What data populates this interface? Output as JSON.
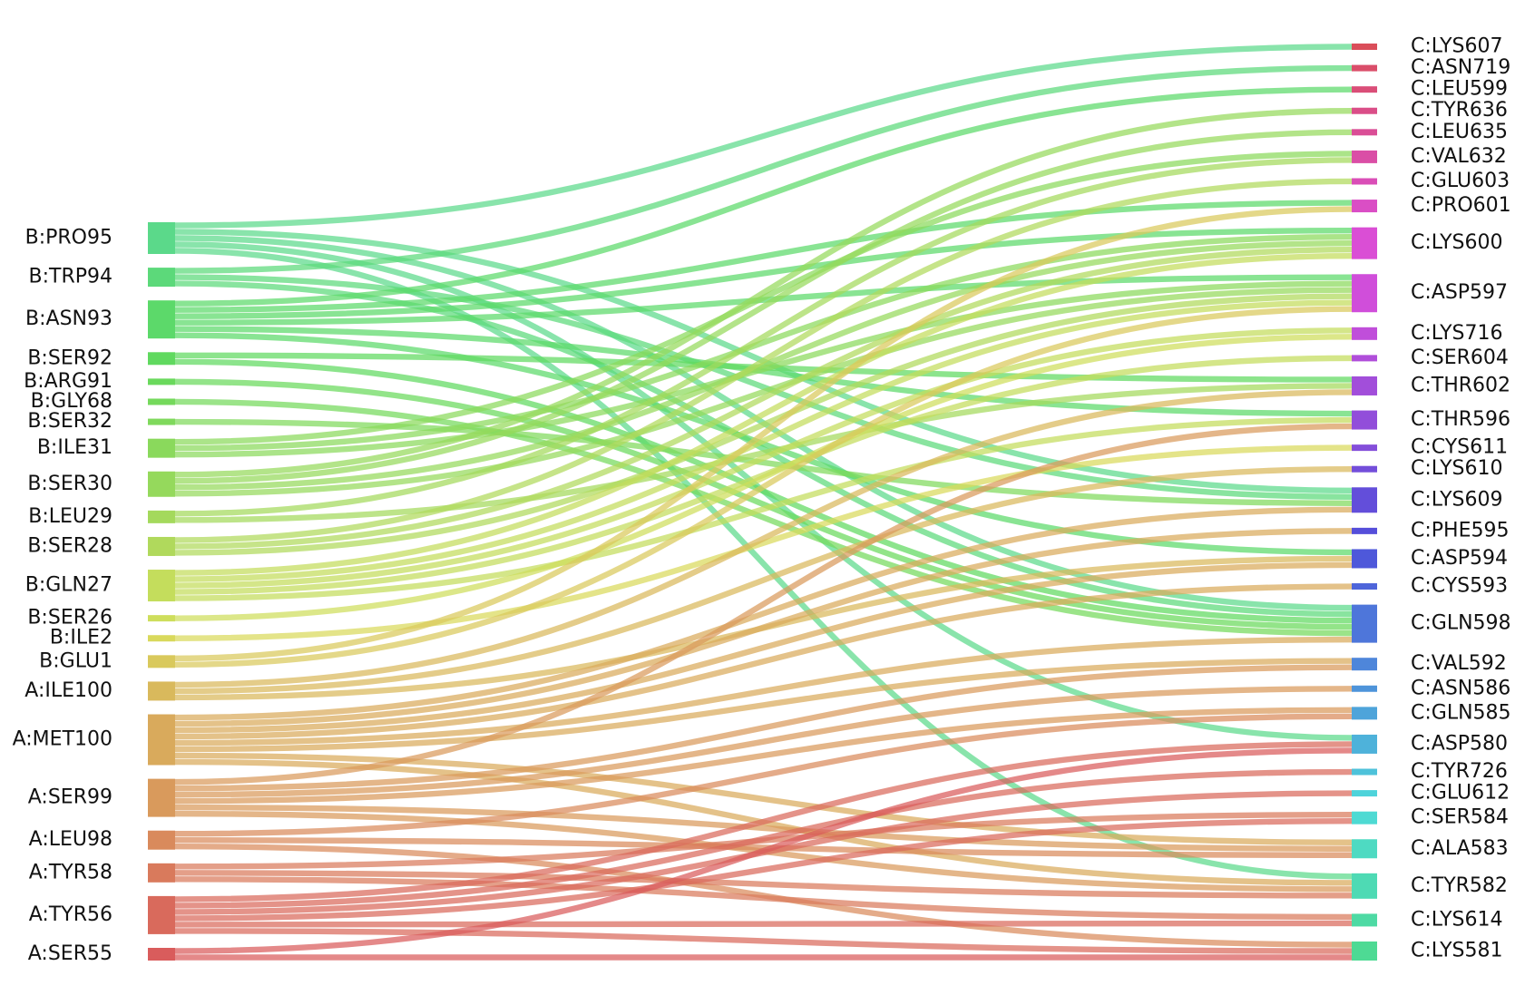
{
  "chart_data": {
    "type": "sankey",
    "left_nodes": [
      {
        "name": "B:PRO95",
        "color": "#5bd98a"
      },
      {
        "name": "B:TRP94",
        "color": "#5cd97a"
      },
      {
        "name": "B:ASN93",
        "color": "#5cd96a"
      },
      {
        "name": "B:SER92",
        "color": "#60d95f"
      },
      {
        "name": "B:ARG91",
        "color": "#6ad95c"
      },
      {
        "name": "B:GLY68",
        "color": "#75d95c"
      },
      {
        "name": "B:SER32",
        "color": "#7fd95c"
      },
      {
        "name": "B:ILE31",
        "color": "#8ad95c"
      },
      {
        "name": "B:SER30",
        "color": "#95d95c"
      },
      {
        "name": "B:LEU29",
        "color": "#a4d95c"
      },
      {
        "name": "B:SER28",
        "color": "#b0d95c"
      },
      {
        "name": "B:GLN27",
        "color": "#c4dd5c"
      },
      {
        "name": "B:SER26",
        "color": "#cede5c"
      },
      {
        "name": "B:ILE2",
        "color": "#d9d95c"
      },
      {
        "name": "B:GLU1",
        "color": "#d9c95c"
      },
      {
        "name": "A:ILE100",
        "color": "#d9b95c"
      },
      {
        "name": "A:MET100",
        "color": "#d9aa5c"
      },
      {
        "name": "A:SER99",
        "color": "#d99a5c"
      },
      {
        "name": "A:LEU98",
        "color": "#d98a5c"
      },
      {
        "name": "A:TYR58",
        "color": "#d97a5c"
      },
      {
        "name": "A:TYR56",
        "color": "#d96a5c"
      },
      {
        "name": "A:SER55",
        "color": "#d95c5c"
      }
    ],
    "right_nodes": [
      {
        "name": "C:LYS607",
        "color": "hsl(355,65%,58%)"
      },
      {
        "name": "C:ASN719",
        "color": "hsl(348,65%,58%)"
      },
      {
        "name": "C:LEU599",
        "color": "hsl(342,65%,58%)"
      },
      {
        "name": "C:TYR636",
        "color": "hsl(335,65%,58%)"
      },
      {
        "name": "C:LEU635",
        "color": "hsl(329,65%,58%)"
      },
      {
        "name": "C:VAL632",
        "color": "hsl(322,65%,58%)"
      },
      {
        "name": "C:GLU603",
        "color": "hsl(315,65%,58%)"
      },
      {
        "name": "C:PRO601",
        "color": "hsl(309,65%,58%)"
      },
      {
        "name": "C:LYS600",
        "color": "hsl(302,65%,58%)"
      },
      {
        "name": "C:ASP597",
        "color": "hsl(296,65%,58%)"
      },
      {
        "name": "C:LYS716",
        "color": "hsl(289,65%,58%)"
      },
      {
        "name": "C:SER604",
        "color": "hsl(282,65%,58%)"
      },
      {
        "name": "C:THR602",
        "color": "hsl(276,65%,58%)"
      },
      {
        "name": "C:THR596",
        "color": "hsl(269,65%,58%)"
      },
      {
        "name": "C:CYS611",
        "color": "hsl(263,65%,58%)"
      },
      {
        "name": "C:LYS610",
        "color": "hsl(256,65%,58%)"
      },
      {
        "name": "C:LYS609",
        "color": "hsl(249,65%,58%)"
      },
      {
        "name": "C:PHE595",
        "color": "hsl(243,65%,58%)"
      },
      {
        "name": "C:ASP594",
        "color": "hsl(236,65%,58%)"
      },
      {
        "name": "C:CYS593",
        "color": "hsl(230,65%,58%)"
      },
      {
        "name": "C:GLN598",
        "color": "hsl(223,65%,58%)"
      },
      {
        "name": "C:VAL592",
        "color": "hsl(216,65%,58%)"
      },
      {
        "name": "C:ASN586",
        "color": "hsl(210,65%,58%)"
      },
      {
        "name": "C:GLN585",
        "color": "hsl(203,65%,58%)"
      },
      {
        "name": "C:ASP580",
        "color": "hsl(197,65%,58%)"
      },
      {
        "name": "C:TYR726",
        "color": "hsl(190,65%,58%)"
      },
      {
        "name": "C:GLU612",
        "color": "hsl(183,65%,58%)"
      },
      {
        "name": "C:SER584",
        "color": "hsl(177,65%,58%)"
      },
      {
        "name": "C:ALA583",
        "color": "hsl(170,65%,58%)"
      },
      {
        "name": "C:TYR582",
        "color": "hsl(164,65%,58%)"
      },
      {
        "name": "C:LYS614",
        "color": "hsl(157,65%,58%)"
      },
      {
        "name": "C:LYS581",
        "color": "hsl(150,65%,58%)"
      }
    ],
    "links": [
      {
        "source": "B:PRO95",
        "target": "C:LYS607",
        "value": 1
      },
      {
        "source": "B:PRO95",
        "target": "C:LYS609",
        "value": 1
      },
      {
        "source": "B:PRO95",
        "target": "C:GLN598",
        "value": 1
      },
      {
        "source": "B:PRO95",
        "target": "C:ASP580",
        "value": 1
      },
      {
        "source": "B:PRO95",
        "target": "C:TYR582",
        "value": 1
      },
      {
        "source": "B:TRP94",
        "target": "C:ASN719",
        "value": 1
      },
      {
        "source": "B:TRP94",
        "target": "C:LYS609",
        "value": 1
      },
      {
        "source": "B:TRP94",
        "target": "C:GLN598",
        "value": 1
      },
      {
        "source": "B:ASN93",
        "target": "C:LEU599",
        "value": 1
      },
      {
        "source": "B:ASN93",
        "target": "C:PRO601",
        "value": 1
      },
      {
        "source": "B:ASN93",
        "target": "C:LYS600",
        "value": 1
      },
      {
        "source": "B:ASN93",
        "target": "C:ASP597",
        "value": 1
      },
      {
        "source": "B:ASN93",
        "target": "C:THR596",
        "value": 1
      },
      {
        "source": "B:ASN93",
        "target": "C:ASP594",
        "value": 1
      },
      {
        "source": "B:SER92",
        "target": "C:THR602",
        "value": 1
      },
      {
        "source": "B:SER92",
        "target": "C:GLN598",
        "value": 1
      },
      {
        "source": "B:ARG91",
        "target": "C:GLN598",
        "value": 1
      },
      {
        "source": "B:GLY68",
        "target": "C:GLN598",
        "value": 1
      },
      {
        "source": "B:SER32",
        "target": "C:LYS609",
        "value": 1
      },
      {
        "source": "B:ILE31",
        "target": "C:VAL632",
        "value": 1
      },
      {
        "source": "B:ILE31",
        "target": "C:LYS600",
        "value": 1
      },
      {
        "source": "B:ILE31",
        "target": "C:ASP597",
        "value": 1
      },
      {
        "source": "B:SER30",
        "target": "C:TYR636",
        "value": 1
      },
      {
        "source": "B:SER30",
        "target": "C:LEU635",
        "value": 1
      },
      {
        "source": "B:SER30",
        "target": "C:LYS600",
        "value": 1
      },
      {
        "source": "B:SER30",
        "target": "C:ASP597",
        "value": 1
      },
      {
        "source": "B:LEU29",
        "target": "C:VAL632",
        "value": 1
      },
      {
        "source": "B:LEU29",
        "target": "C:THR602",
        "value": 1
      },
      {
        "source": "B:SER28",
        "target": "C:GLU603",
        "value": 1
      },
      {
        "source": "B:SER28",
        "target": "C:LYS600",
        "value": 1
      },
      {
        "source": "B:SER28",
        "target": "C:ASP597",
        "value": 1
      },
      {
        "source": "B:GLN27",
        "target": "C:LYS600",
        "value": 1
      },
      {
        "source": "B:GLN27",
        "target": "C:ASP597",
        "value": 1
      },
      {
        "source": "B:GLN27",
        "target": "C:LYS716",
        "value": 1
      },
      {
        "source": "B:GLN27",
        "target": "C:SER604",
        "value": 1
      },
      {
        "source": "B:GLN27",
        "target": "C:THR596",
        "value": 1
      },
      {
        "source": "B:SER26",
        "target": "C:LYS716",
        "value": 1
      },
      {
        "source": "B:ILE2",
        "target": "C:CYS611",
        "value": 1
      },
      {
        "source": "B:GLU1",
        "target": "C:PRO601",
        "value": 1
      },
      {
        "source": "B:GLU1",
        "target": "C:ASP597",
        "value": 1
      },
      {
        "source": "A:ILE100",
        "target": "C:THR602",
        "value": 1
      },
      {
        "source": "A:ILE100",
        "target": "C:LYS610",
        "value": 1
      },
      {
        "source": "A:ILE100",
        "target": "C:ASP594",
        "value": 1
      },
      {
        "source": "A:MET100",
        "target": "C:LYS609",
        "value": 1
      },
      {
        "source": "A:MET100",
        "target": "C:PHE595",
        "value": 1
      },
      {
        "source": "A:MET100",
        "target": "C:ASP594",
        "value": 1
      },
      {
        "source": "A:MET100",
        "target": "C:CYS593",
        "value": 1
      },
      {
        "source": "A:MET100",
        "target": "C:GLN598",
        "value": 1
      },
      {
        "source": "A:MET100",
        "target": "C:VAL592",
        "value": 1
      },
      {
        "source": "A:MET100",
        "target": "C:ALA583",
        "value": 1
      },
      {
        "source": "A:MET100",
        "target": "C:TYR582",
        "value": 1
      },
      {
        "source": "A:SER99",
        "target": "C:THR596",
        "value": 1
      },
      {
        "source": "A:SER99",
        "target": "C:VAL592",
        "value": 1
      },
      {
        "source": "A:SER99",
        "target": "C:ASN586",
        "value": 1
      },
      {
        "source": "A:SER99",
        "target": "C:GLN585",
        "value": 1
      },
      {
        "source": "A:SER99",
        "target": "C:ALA583",
        "value": 1
      },
      {
        "source": "A:SER99",
        "target": "C:TYR582",
        "value": 1
      },
      {
        "source": "A:LEU98",
        "target": "C:GLN585",
        "value": 1
      },
      {
        "source": "A:LEU98",
        "target": "C:ALA583",
        "value": 1
      },
      {
        "source": "A:LEU98",
        "target": "C:LYS581",
        "value": 1
      },
      {
        "source": "A:TYR58",
        "target": "C:SER584",
        "value": 1
      },
      {
        "source": "A:TYR58",
        "target": "C:TYR582",
        "value": 1
      },
      {
        "source": "A:TYR58",
        "target": "C:LYS614",
        "value": 1
      },
      {
        "source": "A:TYR56",
        "target": "C:ASP580",
        "value": 1
      },
      {
        "source": "A:TYR56",
        "target": "C:TYR726",
        "value": 1
      },
      {
        "source": "A:TYR56",
        "target": "C:GLU612",
        "value": 1
      },
      {
        "source": "A:TYR56",
        "target": "C:SER584",
        "value": 1
      },
      {
        "source": "A:TYR56",
        "target": "C:LYS614",
        "value": 1
      },
      {
        "source": "A:TYR56",
        "target": "C:LYS581",
        "value": 1
      },
      {
        "source": "A:SER55",
        "target": "C:ASP580",
        "value": 1
      },
      {
        "source": "A:SER55",
        "target": "C:LYS581",
        "value": 1
      }
    ]
  }
}
